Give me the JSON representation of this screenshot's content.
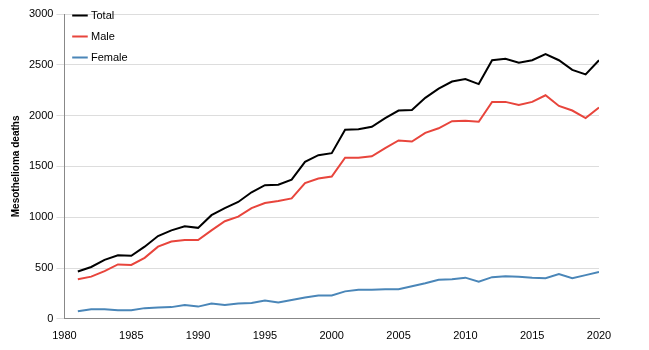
{
  "chart_data": {
    "type": "line",
    "y_label": "Mesothelioma deaths",
    "x": [
      1981,
      1982,
      1983,
      1984,
      1985,
      1986,
      1987,
      1988,
      1989,
      1990,
      1991,
      1992,
      1993,
      1994,
      1995,
      1996,
      1997,
      1998,
      1999,
      2000,
      2001,
      2002,
      2003,
      2004,
      2005,
      2006,
      2007,
      2008,
      2009,
      2010,
      2011,
      2012,
      2013,
      2014,
      2015,
      2016,
      2017,
      2018,
      2019,
      2020
    ],
    "series": [
      {
        "name": "Total",
        "color": "#000000",
        "values": [
          465,
          510,
          580,
          625,
          620,
          710,
          815,
          870,
          910,
          895,
          1020,
          1090,
          1150,
          1245,
          1315,
          1320,
          1370,
          1545,
          1610,
          1630,
          1860,
          1865,
          1890,
          1975,
          2050,
          2055,
          2175,
          2265,
          2335,
          2360,
          2310,
          2545,
          2560,
          2520,
          2545,
          2605,
          2545,
          2450,
          2405,
          2545
        ]
      },
      {
        "name": "Male",
        "color": "#e8453c",
        "values": [
          390,
          415,
          470,
          535,
          530,
          600,
          710,
          760,
          775,
          775,
          870,
          960,
          1005,
          1090,
          1140,
          1160,
          1185,
          1335,
          1380,
          1400,
          1585,
          1585,
          1600,
          1680,
          1755,
          1745,
          1830,
          1875,
          1945,
          1950,
          1940,
          2135,
          2135,
          2105,
          2135,
          2200,
          2095,
          2050,
          1975,
          2080
        ]
      },
      {
        "name": "Female",
        "color": "#4a86b8",
        "values": [
          75,
          95,
          95,
          85,
          85,
          105,
          110,
          115,
          135,
          120,
          150,
          135,
          150,
          155,
          180,
          160,
          185,
          210,
          230,
          230,
          270,
          285,
          285,
          290,
          290,
          320,
          350,
          385,
          390,
          405,
          365,
          410,
          420,
          415,
          405,
          400,
          440,
          400,
          430,
          460
        ]
      }
    ],
    "xlim": [
      1980,
      2020
    ],
    "xticks": [
      1980,
      1985,
      1990,
      1995,
      2000,
      2005,
      2010,
      2015,
      2020
    ],
    "ylim": [
      0,
      3000
    ],
    "yticks": [
      0,
      500,
      1000,
      1500,
      2000,
      2500,
      3000
    ],
    "grid": true,
    "legend": "upper left"
  }
}
